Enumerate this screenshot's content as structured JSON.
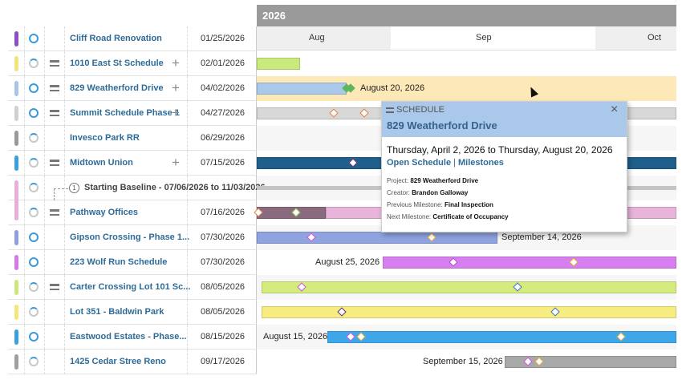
{
  "header": {
    "year": "2026",
    "months": [
      "Aug",
      "Sep",
      "Oct"
    ]
  },
  "rows": [
    {
      "name": "Cliff Road Renovation",
      "date": "01/25/2026"
    },
    {
      "name": "1010 East St Schedule",
      "date": "02/01/2026"
    },
    {
      "name": "829 Weatherford Drive",
      "date": "04/02/2026",
      "bar_label": "August 20, 2026"
    },
    {
      "name": "Summit Schedule Phase 1",
      "date": "04/27/2026"
    },
    {
      "name": "Invesco Park RR",
      "date": "06/29/2026"
    },
    {
      "name": "Midtown Union",
      "date": "07/15/2026"
    },
    {
      "name": "Pathway Offices",
      "date": "07/16/2026"
    },
    {
      "name": "Gipson Crossing - Phase 1...",
      "date": "07/30/2026",
      "bar_label": "September 14, 2026"
    },
    {
      "name": "223 Wolf Run Schedule",
      "date": "07/30/2026",
      "bar_label": "August 25, 2026"
    },
    {
      "name": "Carter Crossing Lot 101 Sc...",
      "date": "08/05/2026"
    },
    {
      "name": "Lot 351 - Baldwin Park",
      "date": "08/05/2026"
    },
    {
      "name": "Eastwood Estates - Phase...",
      "date": "08/15/2026",
      "bar_label": "August 15, 2026"
    },
    {
      "name": "1425 Cedar Stree Reno",
      "date": "09/17/2026",
      "bar_label": "September 15, 2026"
    }
  ],
  "baseline": {
    "number": "1",
    "label": "Starting Baseline - 07/06/2026 to 11/03/2026"
  },
  "popup": {
    "heading": "SCHEDULE",
    "title": "829 Weatherford Drive",
    "range": "Thursday, April 2, 2026 to Thursday, August 20, 2026",
    "links": [
      "Open Schedule",
      "Milestones"
    ],
    "separator": "|",
    "details": [
      {
        "label": "Project:",
        "value": "829 Weatherford Drive"
      },
      {
        "label": "Creator:",
        "value": "Brandon Galloway"
      },
      {
        "label": "Previous Milestone:",
        "value": "Final Inspection"
      },
      {
        "label": "Next Milestone:",
        "value": "Certificate of Occupancy"
      }
    ]
  }
}
